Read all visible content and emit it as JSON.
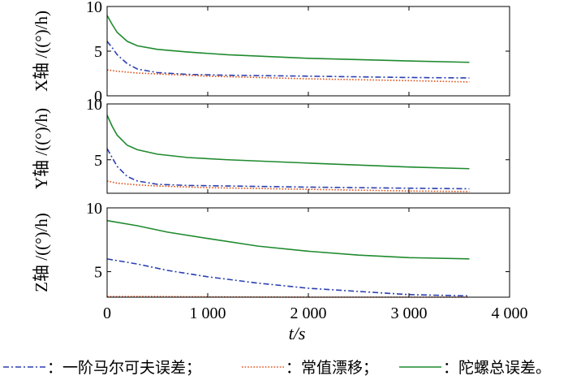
{
  "chart_data": {
    "type": "line",
    "xlabel": "t/s",
    "xlim": [
      0,
      4000
    ],
    "xticks": [
      0,
      1000,
      2000,
      3000,
      4000
    ],
    "xtick_labels": [
      "0",
      "1 000",
      "2 000",
      "3 000",
      "4 000"
    ],
    "legend": {
      "placement": "bottom",
      "entries": [
        {
          "label": "：一阶马尔可夫误差；",
          "color": "#2a3fb0",
          "style": "dashdot"
        },
        {
          "label": "：常值漂移；",
          "color": "#e0521b",
          "style": "dotted"
        },
        {
          "label": "：陀螺总误差。",
          "color": "#1f8a2e",
          "style": "solid"
        }
      ]
    },
    "panels": [
      {
        "ylabel": "X轴 /((°)/h)",
        "ylim": [
          0,
          10
        ],
        "yticks": [
          0,
          5,
          10
        ],
        "series": [
          {
            "name": "一阶马尔可夫误差",
            "color": "#2a3fb0",
            "style": "dashdot",
            "x": [
              0,
              50,
              100,
              200,
              300,
              500,
              800,
              1200,
              2000,
              3000,
              3600
            ],
            "y": [
              6.1,
              5.4,
              4.6,
              3.6,
              3.0,
              2.6,
              2.4,
              2.3,
              2.2,
              2.05,
              2.0
            ]
          },
          {
            "name": "常值漂移",
            "color": "#e0521b",
            "style": "dotted",
            "x": [
              0,
              100,
              300,
              500,
              1000,
              2000,
              3000,
              3600
            ],
            "y": [
              2.9,
              2.75,
              2.55,
              2.45,
              2.2,
              1.9,
              1.7,
              1.55
            ]
          },
          {
            "name": "陀螺总误差",
            "color": "#1f8a2e",
            "style": "solid",
            "x": [
              0,
              50,
              100,
              200,
              300,
              500,
              800,
              1200,
              2000,
              3000,
              3600
            ],
            "y": [
              9.0,
              8.0,
              7.1,
              6.1,
              5.6,
              5.2,
              4.9,
              4.6,
              4.2,
              3.9,
              3.75
            ]
          }
        ]
      },
      {
        "ylabel": "Y轴 /((°)/h)",
        "ylim": [
          2,
          10
        ],
        "yticks": [
          5,
          10
        ],
        "series": [
          {
            "name": "一阶马尔可夫误差",
            "color": "#2a3fb0",
            "style": "dashdot",
            "x": [
              0,
              50,
              100,
              200,
              300,
              500,
              800,
              1200,
              2000,
              3000,
              3600
            ],
            "y": [
              6.0,
              5.2,
              4.4,
              3.5,
              3.1,
              2.8,
              2.7,
              2.65,
              2.55,
              2.45,
              2.4
            ]
          },
          {
            "name": "常值漂移",
            "color": "#e0521b",
            "style": "dotted",
            "x": [
              0,
              100,
              300,
              500,
              1000,
              2000,
              3000,
              3600
            ],
            "y": [
              3.1,
              2.9,
              2.75,
              2.65,
              2.5,
              2.35,
              2.2,
              2.15
            ]
          },
          {
            "name": "陀螺总误差",
            "color": "#1f8a2e",
            "style": "solid",
            "x": [
              0,
              50,
              100,
              200,
              300,
              500,
              800,
              1200,
              2000,
              3000,
              3600
            ],
            "y": [
              9.0,
              8.0,
              7.2,
              6.3,
              5.9,
              5.5,
              5.2,
              5.0,
              4.7,
              4.35,
              4.2
            ]
          }
        ]
      },
      {
        "ylabel": "Z轴 /((°)/h)",
        "ylim": [
          3,
          10
        ],
        "yticks": [
          5,
          10
        ],
        "series": [
          {
            "name": "一阶马尔可夫误差",
            "color": "#2a3fb0",
            "style": "dashdot",
            "x": [
              0,
              300,
              600,
              1000,
              1500,
              2000,
              2500,
              3000,
              3600
            ],
            "y": [
              6.0,
              5.6,
              5.1,
              4.6,
              4.1,
              3.7,
              3.45,
              3.2,
              3.1
            ]
          },
          {
            "name": "常值漂移",
            "color": "#e0521b",
            "style": "dotted",
            "x": [
              0,
              500,
              1000,
              2000,
              3000,
              3600
            ],
            "y": [
              3.05,
              3.05,
              3.03,
              3.0,
              3.0,
              3.0
            ]
          },
          {
            "name": "陀螺总误差",
            "color": "#1f8a2e",
            "style": "solid",
            "x": [
              0,
              300,
              600,
              1000,
              1500,
              2000,
              2500,
              3000,
              3600
            ],
            "y": [
              9.0,
              8.6,
              8.1,
              7.6,
              7.0,
              6.6,
              6.3,
              6.1,
              6.0
            ]
          }
        ]
      }
    ]
  }
}
